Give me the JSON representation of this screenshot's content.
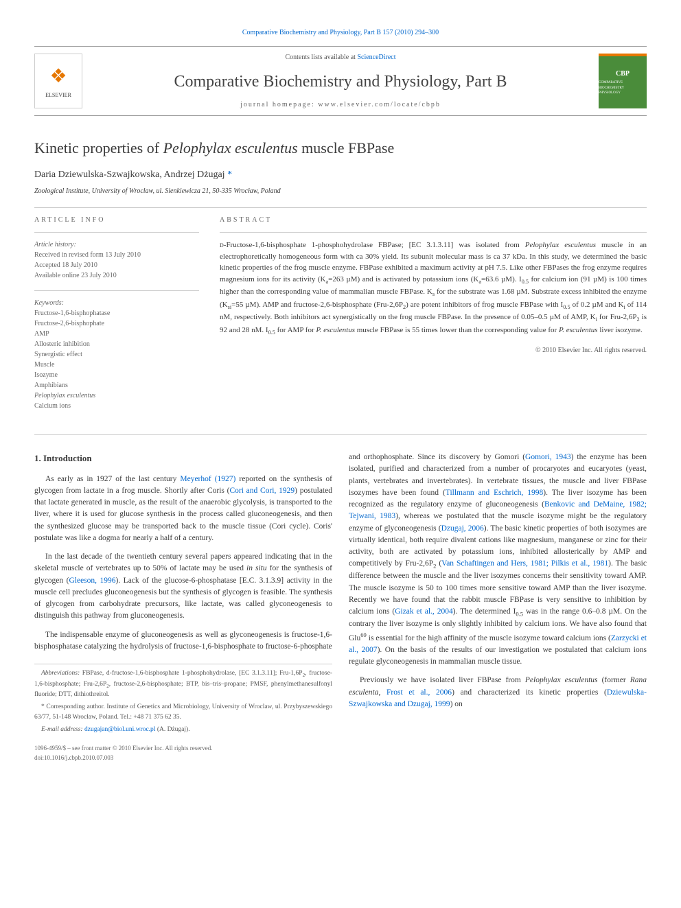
{
  "top_link": {
    "journal": "Comparative Biochemistry and Physiology, Part B 157 (2010) 294–300"
  },
  "header": {
    "contents_prefix": "Contents lists available at ",
    "contents_link": "ScienceDirect",
    "journal_title": "Comparative Biochemistry and Physiology, Part B",
    "homepage_prefix": "journal homepage: ",
    "homepage": "www.elsevier.com/locate/cbpb",
    "elsevier_label": "ELSEVIER",
    "cbp_label": "CBP",
    "cbp_sub": "COMPARATIVE BIOCHEMISTRY PHYSIOLOGY"
  },
  "article": {
    "title_pre": "Kinetic properties of ",
    "title_species": "Pelophylax esculentus",
    "title_post": " muscle FBPase",
    "authors_plain": "Daria Dziewulska-Szwajkowska, Andrzej Dżugaj",
    "corr_mark": "*",
    "affiliation": "Zoological Institute, University of Wroclaw, ul. Sienkiewicza 21, 50-335 Wrocław, Poland"
  },
  "info": {
    "label": "article info",
    "history_label": "Article history:",
    "history": [
      "Received in revised form 13 July 2010",
      "Accepted 18 July 2010",
      "Available online 23 July 2010"
    ],
    "keywords_label": "Keywords:",
    "keywords": [
      "Fructose-1,6-bisphophatase",
      "Fructose-2,6-bisphophate",
      "AMP",
      "Allosteric inhibition",
      "Synergistic effect",
      "Muscle",
      "Isozyme",
      "Amphibians",
      "Pelophylax esculentus",
      "Calcium ions"
    ]
  },
  "abstract": {
    "label": "abstract",
    "text_html": "<span class='sc'>d</span>-Fructose-1,6-bisphosphate 1-phosphohydrolase FBPase; [EC 3.1.3.11] was isolated from <span class='species-i'>Pelophylax esculentus</span> muscle in an electrophoretically homogeneous form with ca 30% yield. Its subunit molecular mass is ca 37 kDa. In this study, we determined the basic kinetic properties of the frog muscle enzyme. FBPase exhibited a maximum activity at pH 7.5. Like other FBPases the frog enzyme requires magnesium ions for its activity (K<sub>a</sub>=263 µM) and is activated by potassium ions (K<sub>a</sub>=63.6 µM). I<sub>0.5</sub> for calcium ion (91 µM) is 100 times higher than the corresponding value of mammalian muscle FBPase. K<sub>s</sub> for the substrate was 1.68 µM. Substrate excess inhibited the enzyme (K<sub>si</sub>=55 µM). AMP and fructose-2,6-bisphosphate (Fru-2,6P<sub>2</sub>) are potent inhibitors of frog muscle FBPase with I<sub>0.5</sub> of 0.2 µM and K<sub>i</sub> of 114 nM, respectively. Both inhibitors act synergistically on the frog muscle FBPase. In the presence of 0.05–0.5 µM of AMP, K<sub>i</sub> for Fru-2,6P<sub>2</sub> is 92 and 28 nM. I<sub>0.5</sub> for AMP for <span class='species-i'>P. esculentus</span> muscle FBPase is 55 times lower than the corresponding value for <span class='species-i'>P. esculentus</span> liver isozyme.",
    "copyright": "© 2010 Elsevier Inc. All rights reserved."
  },
  "body": {
    "heading1": "1. Introduction",
    "left_html": "<p>As early as in 1927 of the last century <a class='ref-link' href='#'>Meyerhof (1927)</a> reported on the synthesis of glycogen from lactate in a frog muscle. Shortly after Coris (<a class='ref-link' href='#'>Cori and Cori, 1929</a>) postulated that lactate generated in muscle, as the result of the anaerobic glycolysis, is transported to the liver, where it is used for glucose synthesis in the process called gluconeogenesis, and then the synthesized glucose may be transported back to the muscle tissue (Cori cycle). Coris' postulate was like a dogma for nearly a half of a century.</p><p>In the last decade of the twentieth century several papers appeared indicating that in the skeletal muscle of vertebrates up to 50% of lactate may be used <span class='species-i'>in situ</span> for the synthesis of glycogen (<a class='ref-link' href='#'>Gleeson, 1996</a>). Lack of the glucose-6-phosphatase [E.C. 3.1.3.9] activity in the muscle cell precludes gluconeogenesis but the synthesis of glycogen is feasible. The synthesis of glycogen from carbohydrate precursors, like lactate, was called glyconeogenesis to distinguish this pathway from gluconeogenesis.</p><p>The indispensable enzyme of gluconeogenesis as well as glyconeogenesis is fructose-1,6-bisphosphatase catalyzing the hydrolysis of fructose-1,6-bisphosphate to fructose-6-phosphate</p>",
    "right_html": "<p style='text-indent:0'>and orthophosphate. Since its discovery by Gomori (<a class='ref-link' href='#'>Gomori, 1943</a>) the enzyme has been isolated, purified and characterized from a number of procaryotes and eucaryotes (yeast, plants, vertebrates and invertebrates). In vertebrate tissues, the muscle and liver FBPase isozymes have been found (<a class='ref-link' href='#'>Tillmann and Eschrich, 1998</a>). The liver isozyme has been recognized as the regulatory enzyme of gluconeogenesis (<a class='ref-link' href='#'>Benkovic and DeMaine, 1982; Tejwani, 1983</a>), whereas we postulated that the muscle isozyme might be the regulatory enzyme of glyconeogenesis (<a class='ref-link' href='#'>Dzugaj, 2006</a>). The basic kinetic properties of both isozymes are virtually identical, both require divalent cations like magnesium, manganese or zinc for their activity, both are activated by potassium ions, inhibited allosterically by AMP and competitively by Fru-2,6P<sub>2</sub> (<a class='ref-link' href='#'>Van Schaftingen and Hers, 1981; Pilkis et al., 1981</a>). The basic difference between the muscle and the liver isozymes concerns their sensitivity toward AMP. The muscle isozyme is 50 to 100 times more sensitive toward AMP than the liver isozyme. Recently we have found that the rabbit muscle FBPase is very sensitive to inhibition by calcium ions (<a class='ref-link' href='#'>Gizak et al., 2004</a>). The determined I<sub>0.5</sub> was in the range 0.6–0.8 µM. On the contrary the liver isozyme is only slightly inhibited by calcium ions. We have also found that Glu<sup>69</sup> is essential for the high affinity of the muscle isozyme toward calcium ions (<a class='ref-link' href='#'>Zarzycki et al., 2007</a>). On the basis of the results of our investigation we postulated that calcium ions regulate glyconeogenesis in mammalian muscle tissue.</p><p>Previously we have isolated liver FBPase from <span class='species-i'>Pelophylax esculentus</span> (former <span class='species-i'>Rana esculenta</span>, <a class='ref-link' href='#'>Frost et al., 2006</a>) and characterized its kinetic properties (<a class='ref-link' href='#'>Dziewulska-Szwajkowska and Dzugaj, 1999</a>) on</p>"
  },
  "footnotes": {
    "abbrev_html": "<span class='species-i'>Abbreviations:</span> FBPase, <span class='sc'>d</span>-fructose-1,6-bisphosphate 1-phosphohydrolase, [EC 3.1.3.11]; Fru-1,6P<sub>2</sub>, fructose-1,6-bisphosphate; Fru-2,6P<sub>2</sub>, fructose-2,6-bisphosphate; BTP, bis–tris–propane; PMSF, phenylmethanesulfonyl fluoride; DTT, dithiothreitol.",
    "corr_html": "* Corresponding author. Institute of Genetics and Microbiology, University of Wroclaw, ul. Przybyszewskiego 63/77, 51-148 Wrocław, Poland. Tel.: +48 71 375 62 35.",
    "email_label": "E-mail address: ",
    "email": "dzugajan@biol.uni.wroc.pl",
    "email_suffix": " (A. Dżugaj)."
  },
  "bottom": {
    "issn": "1096-4959/$ – see front matter © 2010 Elsevier Inc. All rights reserved.",
    "doi": "doi:10.1016/j.cbpb.2010.07.003"
  },
  "colors": {
    "link": "#0066cc",
    "text": "#3a3a3a",
    "muted": "#666666",
    "rule": "#cccccc",
    "elsevier_orange": "#e67700",
    "cbp_green": "#4a8c3a"
  }
}
